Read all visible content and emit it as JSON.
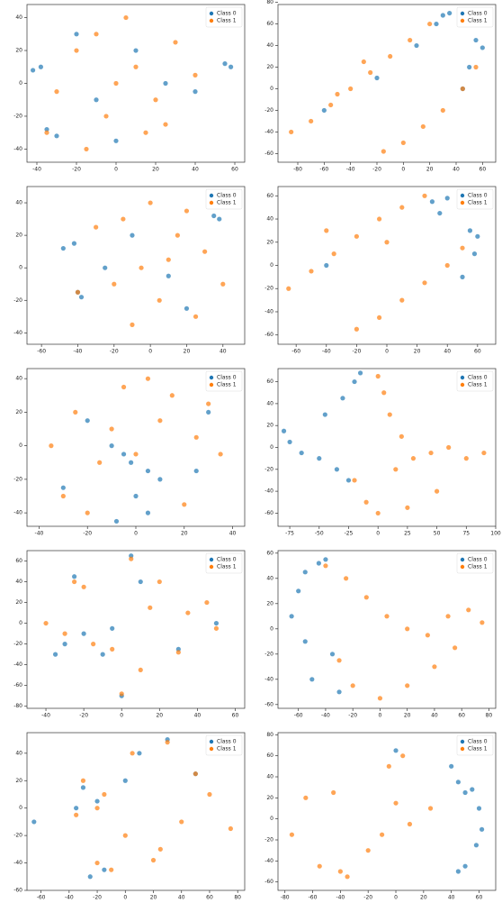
{
  "chart_data": [
    {
      "type": "scatter",
      "legend": "upper right",
      "xlim": [
        -45,
        65
      ],
      "ylim": [
        -48,
        48
      ],
      "xticks": [
        -40,
        -20,
        0,
        20,
        40,
        60
      ],
      "yticks": [
        -40,
        -20,
        0,
        20,
        40
      ],
      "series": [
        {
          "name": "Class 0",
          "color": "#1f77b4",
          "x": [
            -42,
            -38,
            -35,
            -30,
            55,
            58,
            10,
            -10,
            25,
            -20,
            40,
            0
          ],
          "y": [
            8,
            10,
            -28,
            -32,
            12,
            10,
            20,
            -10,
            0,
            30,
            -5,
            -35
          ]
        },
        {
          "name": "Class 1",
          "color": "#ff7f0e",
          "x": [
            -20,
            -10,
            0,
            10,
            20,
            30,
            -30,
            -35,
            15,
            5,
            -5,
            40,
            25,
            -15
          ],
          "y": [
            20,
            30,
            0,
            10,
            -10,
            25,
            -5,
            -30,
            -30,
            40,
            -20,
            5,
            -25,
            -40
          ]
        }
      ]
    },
    {
      "type": "scatter",
      "legend": "upper right",
      "xlim": [
        -95,
        70
      ],
      "ylim": [
        -68,
        78
      ],
      "xticks": [
        -80,
        -60,
        -40,
        -20,
        0,
        20,
        40,
        60
      ],
      "yticks": [
        -60,
        -40,
        -20,
        0,
        20,
        40,
        60,
        80
      ],
      "series": [
        {
          "name": "Class 0",
          "color": "#1f77b4",
          "x": [
            30,
            35,
            25,
            55,
            60,
            50,
            -60,
            10,
            45,
            -20
          ],
          "y": [
            68,
            70,
            60,
            45,
            38,
            20,
            -20,
            40,
            0,
            10
          ]
        },
        {
          "name": "Class 1",
          "color": "#ff7f0e",
          "x": [
            -85,
            -70,
            -55,
            -40,
            -25,
            -10,
            5,
            20,
            -15,
            0,
            15,
            30,
            45,
            55,
            -50,
            -30
          ],
          "y": [
            -40,
            -30,
            -15,
            0,
            15,
            30,
            45,
            60,
            -58,
            -50,
            -35,
            -20,
            0,
            20,
            -5,
            25
          ]
        }
      ]
    },
    {
      "type": "scatter",
      "legend": "upper right",
      "xlim": [
        -68,
        52
      ],
      "ylim": [
        -47,
        50
      ],
      "xticks": [
        -60,
        -40,
        -20,
        0,
        20,
        40
      ],
      "yticks": [
        -40,
        -20,
        0,
        20,
        40
      ],
      "series": [
        {
          "name": "Class 0",
          "color": "#1f77b4",
          "x": [
            -48,
            -42,
            -40,
            -38,
            35,
            38,
            10,
            -10,
            20,
            -25
          ],
          "y": [
            12,
            15,
            -15,
            -18,
            32,
            30,
            -5,
            20,
            -25,
            0
          ]
        },
        {
          "name": "Class 1",
          "color": "#ff7f0e",
          "x": [
            -30,
            -15,
            0,
            15,
            30,
            -20,
            5,
            25,
            -5,
            -40,
            40,
            10,
            -10,
            20
          ],
          "y": [
            25,
            30,
            40,
            20,
            10,
            -10,
            -20,
            -30,
            0,
            -15,
            -10,
            5,
            -35,
            35
          ]
        }
      ]
    },
    {
      "type": "scatter",
      "legend": "upper right",
      "xlim": [
        -72,
        72
      ],
      "ylim": [
        -68,
        68
      ],
      "xticks": [
        -60,
        -40,
        -20,
        0,
        20,
        40,
        60
      ],
      "yticks": [
        -60,
        -40,
        -20,
        0,
        20,
        40,
        60
      ],
      "series": [
        {
          "name": "Class 0",
          "color": "#1f77b4",
          "x": [
            30,
            40,
            35,
            55,
            60,
            58,
            50,
            -40
          ],
          "y": [
            55,
            58,
            45,
            30,
            25,
            10,
            -10,
            0
          ]
        },
        {
          "name": "Class 1",
          "color": "#ff7f0e",
          "x": [
            -65,
            -50,
            -35,
            -20,
            -5,
            10,
            25,
            -20,
            -5,
            10,
            25,
            40,
            50,
            -40,
            0
          ],
          "y": [
            -20,
            -5,
            10,
            25,
            40,
            50,
            60,
            -55,
            -45,
            -30,
            -15,
            0,
            15,
            30,
            20
          ]
        }
      ]
    },
    {
      "type": "scatter",
      "legend": "upper right",
      "xlim": [
        -45,
        45
      ],
      "ylim": [
        -48,
        46
      ],
      "xticks": [
        -40,
        -20,
        0,
        20,
        40
      ],
      "yticks": [
        -40,
        -20,
        0,
        20,
        40
      ],
      "series": [
        {
          "name": "Class 0",
          "color": "#1f77b4",
          "x": [
            -5,
            -2,
            5,
            -10,
            0,
            10,
            -20,
            25,
            30,
            -30,
            5,
            -8
          ],
          "y": [
            -5,
            -10,
            -15,
            0,
            -30,
            -20,
            15,
            -15,
            20,
            -25,
            -40,
            -45
          ]
        },
        {
          "name": "Class 1",
          "color": "#ff7f0e",
          "x": [
            -35,
            -25,
            -15,
            -5,
            5,
            15,
            25,
            35,
            -30,
            0,
            20,
            -10,
            10,
            -20,
            30
          ],
          "y": [
            0,
            20,
            -10,
            35,
            40,
            30,
            5,
            -5,
            -30,
            -5,
            -35,
            10,
            15,
            -40,
            25
          ]
        }
      ]
    },
    {
      "type": "scatter",
      "legend": "upper right",
      "xlim": [
        -85,
        100
      ],
      "ylim": [
        -72,
        72
      ],
      "xticks": [
        -75,
        -50,
        -25,
        0,
        25,
        50,
        75,
        100
      ],
      "yticks": [
        -60,
        -40,
        -20,
        0,
        20,
        40,
        60
      ],
      "series": [
        {
          "name": "Class 0",
          "color": "#1f77b4",
          "x": [
            -80,
            -75,
            -65,
            -50,
            -35,
            -25,
            -20,
            -30,
            -45,
            -15
          ],
          "y": [
            15,
            5,
            -5,
            -10,
            -20,
            -30,
            60,
            45,
            30,
            68
          ]
        },
        {
          "name": "Class 1",
          "color": "#ff7f0e",
          "x": [
            0,
            5,
            10,
            20,
            30,
            45,
            60,
            75,
            90,
            -10,
            0,
            25,
            50,
            -20,
            15
          ],
          "y": [
            65,
            50,
            30,
            10,
            -10,
            -5,
            0,
            -10,
            -5,
            -50,
            -60,
            -55,
            -40,
            -30,
            -20
          ]
        }
      ]
    },
    {
      "type": "scatter",
      "legend": "upper right",
      "xlim": [
        -50,
        65
      ],
      "ylim": [
        -82,
        70
      ],
      "xticks": [
        -40,
        -20,
        0,
        20,
        40,
        60
      ],
      "yticks": [
        -80,
        -60,
        -40,
        -20,
        0,
        20,
        40,
        60
      ],
      "series": [
        {
          "name": "Class 0",
          "color": "#1f77b4",
          "x": [
            -30,
            -20,
            -35,
            -10,
            -25,
            0,
            5,
            50,
            10,
            30,
            -5
          ],
          "y": [
            -20,
            -10,
            -30,
            -30,
            45,
            -70,
            65,
            0,
            40,
            -25,
            -5
          ]
        },
        {
          "name": "Class 1",
          "color": "#ff7f0e",
          "x": [
            -25,
            -20,
            -30,
            -15,
            -5,
            0,
            5,
            15,
            30,
            45,
            20,
            35,
            50,
            -40,
            10
          ],
          "y": [
            40,
            35,
            -10,
            -20,
            -25,
            -68,
            62,
            15,
            -28,
            20,
            40,
            10,
            -5,
            0,
            -45
          ]
        }
      ]
    },
    {
      "type": "scatter",
      "legend": "upper right",
      "xlim": [
        -75,
        85
      ],
      "ylim": [
        -63,
        62
      ],
      "xticks": [
        -60,
        -40,
        -20,
        0,
        20,
        40,
        60,
        80
      ],
      "yticks": [
        -60,
        -40,
        -20,
        0,
        20,
        40,
        60
      ],
      "series": [
        {
          "name": "Class 0",
          "color": "#1f77b4",
          "x": [
            -65,
            -60,
            -55,
            -45,
            -40,
            -35,
            -50,
            -55,
            -30
          ],
          "y": [
            10,
            30,
            45,
            52,
            55,
            -20,
            -40,
            -10,
            -50
          ]
        },
        {
          "name": "Class 1",
          "color": "#ff7f0e",
          "x": [
            -40,
            -25,
            -10,
            5,
            20,
            35,
            50,
            65,
            75,
            -20,
            0,
            20,
            40,
            55,
            -30
          ],
          "y": [
            50,
            40,
            25,
            10,
            0,
            -5,
            10,
            15,
            5,
            -45,
            -55,
            -45,
            -30,
            -15,
            -25
          ]
        }
      ]
    },
    {
      "type": "scatter",
      "legend": "upper right",
      "xlim": [
        -70,
        85
      ],
      "ylim": [
        -60,
        55
      ],
      "xticks": [
        -60,
        -40,
        -20,
        0,
        20,
        40,
        60,
        80
      ],
      "yticks": [
        -60,
        -40,
        -20,
        0,
        20,
        40
      ],
      "series": [
        {
          "name": "Class 0",
          "color": "#1f77b4",
          "x": [
            -30,
            -20,
            -35,
            -15,
            -65,
            -25,
            10,
            30,
            50,
            0
          ],
          "y": [
            15,
            5,
            0,
            -45,
            -10,
            -50,
            40,
            50,
            25,
            20
          ]
        },
        {
          "name": "Class 1",
          "color": "#ff7f0e",
          "x": [
            -30,
            -20,
            -35,
            -15,
            -10,
            -20,
            20,
            25,
            5,
            30,
            50,
            40,
            60,
            75,
            0
          ],
          "y": [
            20,
            0,
            -5,
            10,
            -45,
            -40,
            -38,
            -30,
            40,
            48,
            25,
            -10,
            10,
            -15,
            -20
          ]
        }
      ]
    },
    {
      "type": "scatter",
      "legend": "upper right",
      "xlim": [
        -85,
        72
      ],
      "ylim": [
        -68,
        82
      ],
      "xticks": [
        -80,
        -60,
        -40,
        -20,
        0,
        20,
        40,
        60
      ],
      "yticks": [
        -60,
        -40,
        -20,
        0,
        20,
        40,
        60,
        80
      ],
      "series": [
        {
          "name": "Class 0",
          "color": "#1f77b4",
          "x": [
            40,
            45,
            50,
            55,
            60,
            62,
            58,
            45,
            50,
            0
          ],
          "y": [
            50,
            35,
            25,
            28,
            10,
            -10,
            -25,
            -50,
            -45,
            65
          ]
        },
        {
          "name": "Class 1",
          "color": "#ff7f0e",
          "x": [
            -5,
            5,
            -65,
            -45,
            -75,
            -55,
            -35,
            -10,
            10,
            25,
            -20,
            0,
            -40
          ],
          "y": [
            50,
            60,
            20,
            25,
            -15,
            -45,
            -55,
            -15,
            -5,
            10,
            -30,
            15,
            -50
          ]
        }
      ]
    }
  ]
}
